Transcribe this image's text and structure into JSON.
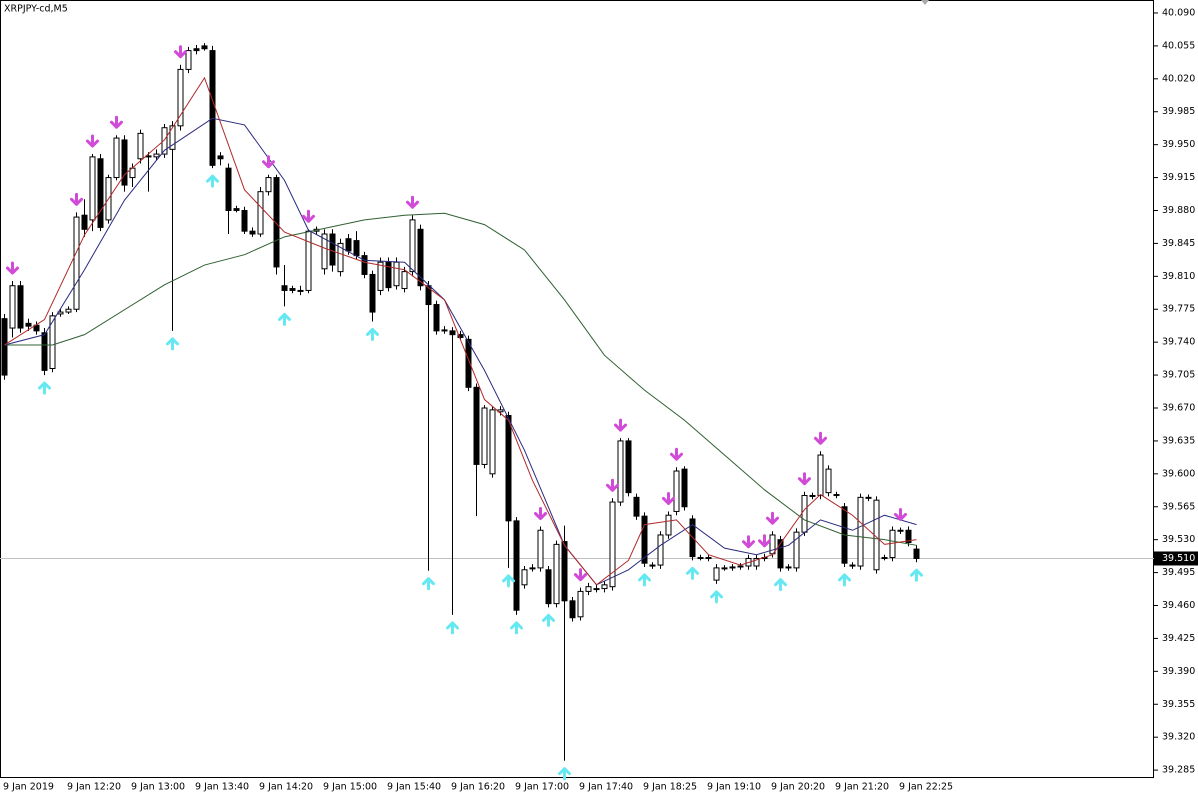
{
  "chart_data": {
    "type": "candlestick",
    "title": "XRPJPY-cd,M5",
    "categories": [
      "9 Jan 2019",
      null,
      null,
      null,
      null,
      null,
      null,
      null,
      "9 Jan 12:20",
      null,
      null,
      null,
      null,
      null,
      null,
      null,
      "9 Jan 13:00",
      null,
      null,
      null,
      null,
      null,
      null,
      null,
      "9 Jan 13:40",
      null,
      null,
      null,
      null,
      null,
      null,
      null,
      "9 Jan 14:20",
      null,
      null,
      null,
      null,
      null,
      null,
      null,
      "9 Jan 15:00",
      null,
      null,
      null,
      null,
      null,
      null,
      null,
      "9 Jan 15:40",
      null,
      null,
      null,
      null,
      null,
      null,
      null,
      "9 Jan 16:20",
      null,
      null,
      null,
      null,
      null,
      null,
      null,
      "9 Jan 17:00",
      null,
      null,
      null,
      null,
      null,
      null,
      null,
      "9 Jan 17:40",
      null,
      null,
      null,
      null,
      null,
      null,
      null,
      "9 Jan 18:25",
      null,
      null,
      null,
      null,
      null,
      null,
      null,
      "9 Jan 19:10",
      null,
      null,
      null,
      null,
      null,
      null,
      null,
      "9 Jan 20:20",
      null,
      null,
      null,
      null,
      null,
      null,
      null,
      "9 Jan 21:20",
      null,
      null,
      null,
      null,
      null,
      null,
      null,
      "9 Jan 22:25",
      null,
      null
    ],
    "ohlc": [
      [
        39.765,
        39.77,
        39.7,
        39.705
      ],
      [
        39.755,
        39.805,
        39.745,
        39.8
      ],
      [
        39.8,
        39.805,
        39.75,
        39.755
      ],
      [
        39.76,
        39.765,
        39.752,
        39.757
      ],
      [
        39.758,
        39.762,
        39.748,
        39.752
      ],
      [
        39.75,
        39.755,
        39.705,
        39.71
      ],
      [
        39.712,
        39.772,
        39.708,
        39.768
      ],
      [
        39.77,
        39.775,
        39.767,
        39.772
      ],
      [
        39.772,
        39.778,
        39.77,
        39.775
      ],
      [
        39.775,
        39.878,
        39.772,
        39.873
      ],
      [
        39.875,
        39.892,
        39.852,
        39.86
      ],
      [
        39.87,
        39.94,
        39.858,
        39.937
      ],
      [
        39.935,
        39.94,
        39.858,
        39.862
      ],
      [
        39.87,
        39.918,
        39.866,
        39.915
      ],
      [
        39.915,
        39.96,
        39.912,
        39.957
      ],
      [
        39.955,
        39.96,
        39.9,
        39.907
      ],
      [
        39.915,
        39.93,
        39.905,
        39.925
      ],
      [
        39.935,
        39.966,
        39.93,
        39.962
      ],
      [
        39.938,
        39.942,
        39.9,
        39.937
      ],
      [
        39.937,
        39.945,
        39.933,
        39.94
      ],
      [
        39.94,
        39.972,
        39.936,
        39.968
      ],
      [
        39.945,
        39.975,
        39.752,
        39.97
      ],
      [
        39.97,
        40.035,
        39.965,
        40.03
      ],
      [
        40.03,
        40.054,
        40.026,
        40.05
      ],
      [
        40.052,
        40.056,
        40.046,
        40.05
      ],
      [
        40.055,
        40.058,
        40.05,
        40.052
      ],
      [
        40.05,
        40.055,
        39.925,
        39.928
      ],
      [
        39.938,
        39.942,
        39.928,
        39.935
      ],
      [
        39.925,
        39.93,
        39.855,
        39.88
      ],
      [
        39.882,
        39.885,
        39.878,
        39.88
      ],
      [
        39.88,
        39.884,
        39.855,
        39.858
      ],
      [
        39.858,
        39.862,
        39.852,
        39.855
      ],
      [
        39.855,
        39.905,
        39.852,
        39.9
      ],
      [
        39.9,
        39.918,
        39.896,
        39.915
      ],
      [
        39.915,
        39.918,
        39.812,
        39.82
      ],
      [
        39.8,
        39.822,
        39.778,
        39.795
      ],
      [
        39.797,
        39.8,
        39.792,
        39.795
      ],
      [
        39.795,
        39.8,
        39.79,
        39.795
      ],
      [
        39.795,
        39.86,
        39.792,
        39.858
      ],
      [
        39.858,
        39.863,
        39.855,
        39.86
      ],
      [
        39.818,
        39.86,
        39.812,
        39.855
      ],
      [
        39.855,
        39.86,
        39.815,
        39.822
      ],
      [
        39.815,
        39.85,
        39.81,
        39.845
      ],
      [
        39.85,
        39.855,
        39.833,
        39.837
      ],
      [
        39.848,
        39.858,
        39.828,
        39.832
      ],
      [
        39.832,
        39.836,
        39.808,
        39.812
      ],
      [
        39.812,
        39.816,
        39.762,
        39.772
      ],
      [
        39.795,
        39.83,
        39.79,
        39.825
      ],
      [
        39.825,
        39.83,
        39.794,
        39.798
      ],
      [
        39.8,
        39.83,
        39.796,
        39.825
      ],
      [
        39.797,
        39.82,
        39.793,
        39.815
      ],
      [
        39.815,
        39.875,
        39.81,
        39.87
      ],
      [
        39.86,
        39.865,
        39.795,
        39.8
      ],
      [
        39.8,
        39.805,
        39.497,
        39.78
      ],
      [
        39.78,
        39.784,
        39.748,
        39.752
      ],
      [
        39.753,
        39.757,
        39.749,
        39.752
      ],
      [
        39.752,
        39.756,
        39.45,
        39.748
      ],
      [
        39.748,
        39.752,
        39.742,
        39.745
      ],
      [
        39.743,
        39.747,
        39.688,
        39.692
      ],
      [
        39.692,
        39.696,
        39.555,
        39.61
      ],
      [
        39.61,
        39.673,
        39.606,
        39.67
      ],
      [
        39.6,
        39.672,
        39.596,
        39.668
      ],
      [
        39.666,
        39.672,
        39.662,
        39.668
      ],
      [
        39.662,
        39.666,
        39.5,
        39.55
      ],
      [
        39.55,
        39.554,
        39.45,
        39.455
      ],
      [
        39.482,
        39.502,
        39.478,
        39.498
      ],
      [
        39.5,
        39.504,
        39.496,
        39.5
      ],
      [
        39.5,
        39.544,
        39.496,
        39.54
      ],
      [
        39.498,
        39.502,
        39.458,
        39.462
      ],
      [
        39.462,
        39.529,
        39.458,
        39.525
      ],
      [
        39.528,
        39.545,
        39.295,
        39.465
      ],
      [
        39.465,
        39.469,
        39.443,
        39.447
      ],
      [
        39.448,
        39.479,
        39.444,
        39.475
      ],
      [
        39.475,
        39.484,
        39.471,
        39.48
      ],
      [
        39.478,
        39.482,
        39.474,
        39.478
      ],
      [
        39.478,
        39.486,
        39.474,
        39.482
      ],
      [
        39.48,
        39.574,
        39.476,
        39.57
      ],
      [
        39.57,
        39.638,
        39.566,
        39.635
      ],
      [
        39.635,
        39.638,
        39.576,
        39.58
      ],
      [
        39.575,
        39.579,
        39.551,
        39.555
      ],
      [
        39.555,
        39.559,
        39.501,
        39.505
      ],
      [
        39.503,
        39.506,
        39.499,
        39.502
      ],
      [
        39.503,
        39.539,
        39.499,
        39.535
      ],
      [
        39.535,
        39.56,
        39.531,
        39.556
      ],
      [
        39.56,
        39.607,
        39.556,
        39.603
      ],
      [
        39.605,
        39.608,
        39.561,
        39.565
      ],
      [
        39.552,
        39.556,
        39.508,
        39.512
      ],
      [
        39.511,
        39.514,
        39.508,
        39.511
      ],
      [
        39.511,
        39.514,
        39.507,
        39.51
      ],
      [
        39.487,
        39.504,
        39.483,
        39.5
      ],
      [
        39.5,
        39.503,
        39.497,
        39.5
      ],
      [
        39.5,
        39.504,
        39.497,
        39.501
      ],
      [
        39.501,
        39.505,
        39.498,
        39.502
      ],
      [
        39.502,
        39.514,
        39.498,
        39.51
      ],
      [
        39.502,
        39.514,
        39.498,
        39.51
      ],
      [
        39.511,
        39.515,
        39.507,
        39.51
      ],
      [
        39.515,
        39.539,
        39.511,
        39.535
      ],
      [
        39.53,
        39.534,
        39.496,
        39.5
      ],
      [
        39.501,
        39.504,
        39.497,
        39.5
      ],
      [
        39.5,
        39.542,
        39.496,
        39.538
      ],
      [
        39.538,
        39.581,
        39.534,
        39.577
      ],
      [
        39.576,
        39.58,
        39.573,
        39.577
      ],
      [
        39.577,
        39.624,
        39.573,
        39.62
      ],
      [
        39.58,
        39.609,
        39.576,
        39.605
      ],
      [
        39.578,
        39.581,
        39.574,
        39.577
      ],
      [
        39.565,
        39.569,
        39.501,
        39.505
      ],
      [
        39.503,
        39.506,
        39.499,
        39.502
      ],
      [
        39.502,
        39.579,
        39.498,
        39.575
      ],
      [
        39.575,
        39.578,
        39.571,
        39.574
      ],
      [
        39.498,
        39.576,
        39.494,
        39.572
      ],
      [
        39.511,
        39.514,
        39.508,
        39.511
      ],
      [
        39.511,
        39.544,
        39.507,
        39.54
      ],
      [
        39.54,
        39.543,
        39.536,
        39.539
      ],
      [
        39.54,
        39.544,
        39.523,
        39.527
      ],
      [
        39.52,
        39.524,
        39.506,
        39.51
      ]
    ],
    "up_color": "#ffffff",
    "down_color": "#000000",
    "series": [
      {
        "color": "#2f6030",
        "x": [
          0,
          6,
          10,
          20,
          25,
          30,
          35,
          40,
          45,
          50,
          55,
          60,
          65,
          70,
          75,
          80,
          85,
          90,
          95,
          100,
          105,
          110,
          114
        ],
        "values": [
          39.737,
          39.737,
          39.748,
          39.801,
          39.822,
          39.833,
          39.852,
          39.861,
          39.87,
          39.875,
          39.877,
          39.865,
          39.838,
          39.785,
          39.726,
          39.689,
          39.657,
          39.62,
          39.583,
          39.551,
          39.535,
          39.53,
          39.524
        ]
      },
      {
        "color": "#2a2a80",
        "x": [
          0,
          5,
          10,
          15,
          20,
          26,
          30,
          35,
          38,
          45,
          50,
          55,
          60,
          65,
          70,
          74,
          78,
          82,
          86,
          90,
          94,
          98,
          102,
          106,
          110,
          114
        ],
        "values": [
          39.737,
          39.748,
          39.817,
          39.891,
          39.944,
          39.978,
          39.971,
          39.912,
          39.859,
          39.827,
          39.825,
          39.785,
          39.71,
          39.625,
          39.524,
          39.482,
          39.498,
          39.524,
          39.546,
          39.521,
          39.514,
          39.524,
          39.551,
          39.54,
          39.556,
          39.546
        ]
      },
      {
        "color": "#b02a2a",
        "x": [
          0,
          5,
          10,
          15,
          20,
          25,
          30,
          35,
          40,
          45,
          50,
          55,
          60,
          63,
          66,
          70,
          74,
          78,
          80,
          84,
          88,
          92,
          96,
          100,
          102,
          106,
          110,
          114
        ],
        "values": [
          39.737,
          39.764,
          39.854,
          39.918,
          39.955,
          40.021,
          39.902,
          39.857,
          39.84,
          39.825,
          39.817,
          39.785,
          39.679,
          39.657,
          39.593,
          39.524,
          39.482,
          39.508,
          39.546,
          39.551,
          39.514,
          39.503,
          39.514,
          39.562,
          39.578,
          39.556,
          39.525,
          39.53
        ]
      }
    ],
    "signals_down": {
      "color": "#d24bd8",
      "x": [
        1,
        9,
        11,
        14,
        22,
        33,
        38,
        51,
        67,
        72,
        76,
        77,
        83,
        84,
        93,
        95,
        96,
        100,
        102,
        112
      ]
    },
    "signals_up": {
      "color": "#66e8f2",
      "x": [
        5,
        21,
        26,
        35,
        46,
        53,
        56,
        63,
        64,
        68,
        70,
        80,
        86,
        89,
        97,
        105,
        114
      ]
    },
    "current_price": {
      "value": 39.51,
      "label": "39.510"
    },
    "ylim": [
      39.2766,
      40.1038
    ],
    "yticks": [
      {
        "value": 40.09,
        "label": "40.090"
      },
      40.055,
      {
        "value": 40.02,
        "label": "40.020"
      },
      39.985,
      {
        "value": 39.95,
        "label": "39.950"
      },
      39.915,
      {
        "value": 39.88,
        "label": "39.880"
      },
      39.845,
      {
        "value": 39.81,
        "label": "39.810"
      },
      39.775,
      {
        "value": 39.74,
        "label": "39.740"
      },
      39.705,
      {
        "value": 39.67,
        "label": "39.670"
      },
      39.635,
      {
        "value": 39.6,
        "label": "39.600"
      },
      39.565,
      {
        "value": 39.53,
        "label": "39.530"
      },
      39.495,
      {
        "value": 39.46,
        "label": "39.460"
      },
      39.425,
      {
        "value": 39.39,
        "label": "39.390"
      },
      39.355,
      {
        "value": 39.32,
        "label": "39.320"
      },
      39.285
    ]
  }
}
